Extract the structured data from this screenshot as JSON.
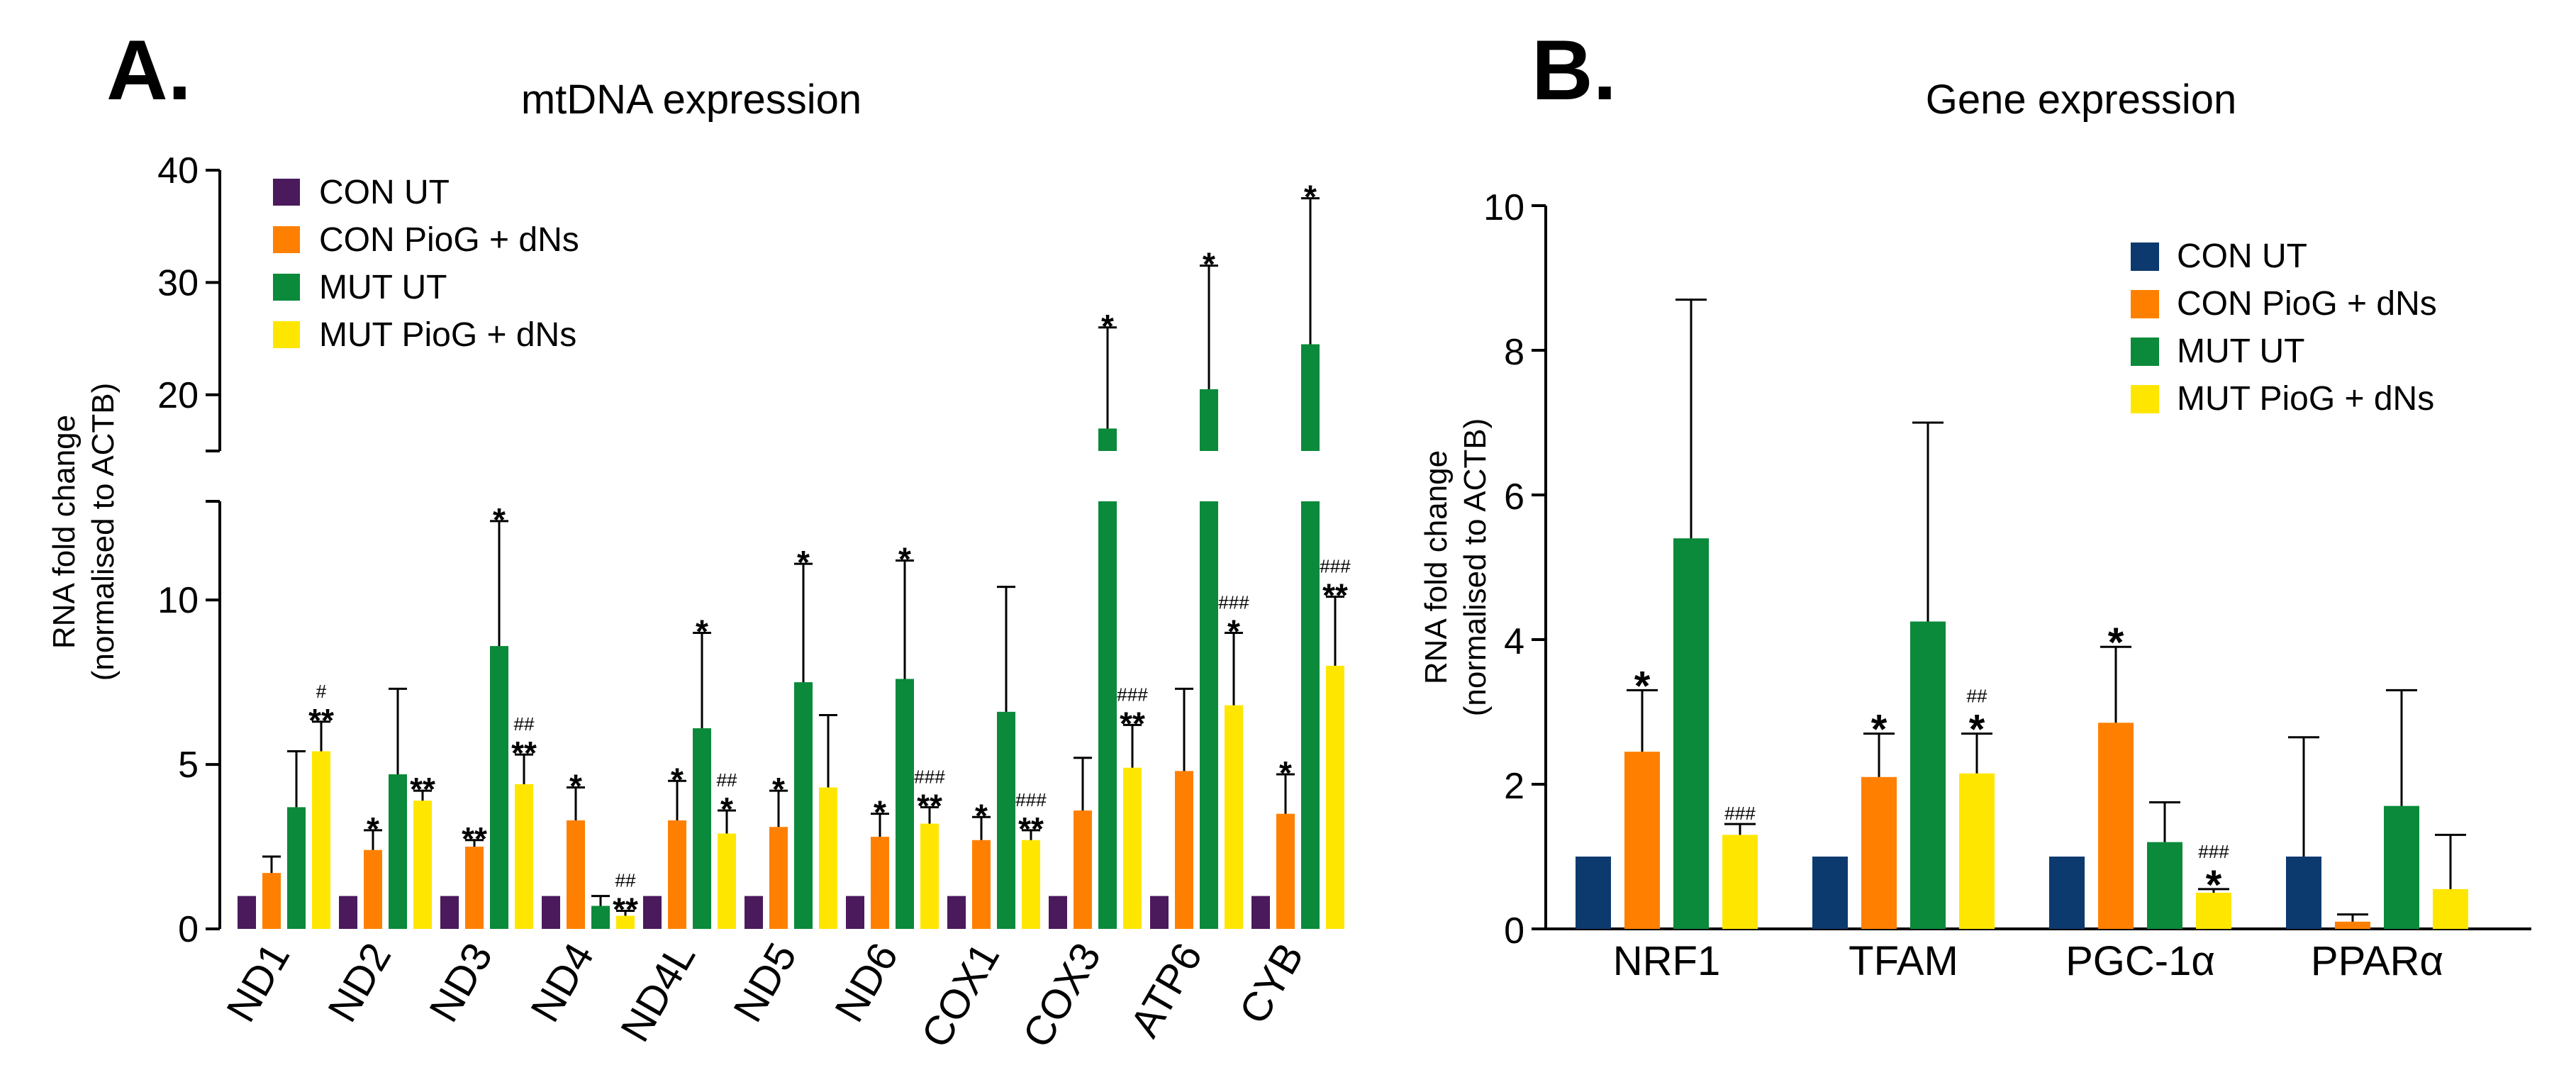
{
  "chart_data": [
    {
      "panel": "A.",
      "type": "bar",
      "title": "mtDNA expression",
      "ylabel_line1": "RNA fold change",
      "ylabel_line2": "(normalised to ACTB)",
      "axis": "broken",
      "ylim_lower": [
        0,
        13
      ],
      "ylim_upper": [
        15,
        40
      ],
      "yticks_lower": [
        0,
        5,
        10
      ],
      "yticks_lower_labels": [
        "0",
        "5",
        "10"
      ],
      "yticks_upper": [
        20,
        30,
        40
      ],
      "yticks_upper_labels": [
        "20",
        "30",
        "40"
      ],
      "categories": [
        "ND1",
        "ND2",
        "ND3",
        "ND4",
        "ND4L",
        "ND5",
        "ND6",
        "COX1",
        "COX3",
        "ATP6",
        "CYB"
      ],
      "series": [
        {
          "name": "CON UT",
          "color": "#4a1a5c",
          "values": [
            1,
            1,
            1,
            1,
            1,
            1,
            1,
            1,
            1,
            1,
            1
          ],
          "errors": [
            0,
            0,
            0,
            0,
            0,
            0,
            0,
            0,
            0,
            0,
            0
          ],
          "stars": [
            "",
            "",
            "",
            "",
            "",
            "",
            "",
            "",
            "",
            "",
            ""
          ],
          "hashes": [
            "",
            "",
            "",
            "",
            "",
            "",
            "",
            "",
            "",
            "",
            ""
          ]
        },
        {
          "name": "CON PioG + dNs",
          "color": "#ff8000",
          "values": [
            1.7,
            2.4,
            2.5,
            3.3,
            3.3,
            3.1,
            2.8,
            2.7,
            3.6,
            4.8,
            3.5
          ],
          "errors": [
            0.5,
            0.6,
            0.2,
            1.0,
            1.2,
            1.1,
            0.7,
            0.7,
            1.6,
            2.5,
            1.2
          ],
          "stars": [
            "",
            "*",
            "**",
            "*",
            "*",
            "*",
            "*",
            "*",
            "",
            "",
            "*"
          ],
          "hashes": [
            "",
            "",
            "",
            "",
            "",
            "",
            "",
            "",
            "",
            "",
            ""
          ]
        },
        {
          "name": "MUT UT",
          "color": "#0a8a3a",
          "values": [
            3.7,
            4.7,
            8.6,
            0.7,
            6.1,
            7.5,
            7.6,
            6.6,
            17,
            20.5,
            24.5
          ],
          "errors": [
            1.7,
            2.6,
            3.8,
            0.3,
            2.9,
            3.6,
            3.6,
            3.8,
            9,
            11,
            13
          ],
          "stars": [
            "",
            "",
            "*",
            "",
            "*",
            "*",
            "*",
            "",
            "*",
            "*",
            "*"
          ],
          "hashes": [
            "",
            "",
            "",
            "",
            "",
            "",
            "",
            "",
            "",
            "",
            ""
          ]
        },
        {
          "name": "MUT PioG + dNs",
          "color": "#ffe600",
          "values": [
            5.4,
            3.9,
            4.4,
            0.4,
            2.9,
            4.3,
            3.2,
            2.7,
            4.9,
            6.8,
            8.0
          ],
          "errors": [
            0.9,
            0.3,
            0.9,
            0.15,
            0.7,
            2.2,
            0.5,
            0.3,
            1.3,
            2.2,
            2.1
          ],
          "stars": [
            "**",
            "**",
            "**",
            "**",
            "*",
            "",
            "**",
            "**",
            "**",
            "*",
            "**"
          ],
          "hashes": [
            "#",
            "",
            "##",
            "##",
            "##",
            "",
            "###",
            "###",
            "###",
            "###",
            "###"
          ]
        }
      ]
    },
    {
      "panel": "B.",
      "type": "bar",
      "title": "Gene expression",
      "ylabel_line1": "RNA fold change",
      "ylabel_line2": "(normalised to ACTB)",
      "ylim": [
        0,
        10
      ],
      "yticks": [
        0,
        2,
        4,
        6,
        8,
        10
      ],
      "ytick_labels": [
        "0",
        "2",
        "4",
        "6",
        "8",
        "10"
      ],
      "categories": [
        "NRF1",
        "TFAM",
        "PGC-1α",
        "PPARα"
      ],
      "series": [
        {
          "name": "CON UT",
          "color": "#0d3a6e",
          "values": [
            1,
            1,
            1,
            1
          ],
          "errors": [
            0,
            0,
            0,
            1.65
          ],
          "stars": [
            "",
            "",
            "",
            ""
          ],
          "hashes": [
            "",
            "",
            "",
            ""
          ]
        },
        {
          "name": "CON PioG + dNs",
          "color": "#ff8000",
          "values": [
            2.45,
            2.1,
            2.85,
            0.1
          ],
          "errors": [
            0.85,
            0.6,
            1.05,
            0.1
          ],
          "stars": [
            "*",
            "*",
            "*",
            ""
          ],
          "hashes": [
            "",
            "",
            "",
            ""
          ]
        },
        {
          "name": "MUT UT",
          "color": "#0a8a3a",
          "values": [
            5.4,
            4.25,
            1.2,
            1.7
          ],
          "errors": [
            3.3,
            2.75,
            0.55,
            1.6
          ],
          "stars": [
            "",
            "",
            "",
            ""
          ],
          "hashes": [
            "",
            "",
            "",
            ""
          ]
        },
        {
          "name": "MUT PioG + dNs",
          "color": "#ffe600",
          "values": [
            1.3,
            2.15,
            0.5,
            0.55
          ],
          "errors": [
            0.15,
            0.55,
            0.05,
            0.75
          ],
          "stars": [
            "",
            "*",
            "*",
            ""
          ],
          "hashes": [
            "###",
            "##",
            "###",
            ""
          ]
        }
      ]
    }
  ]
}
